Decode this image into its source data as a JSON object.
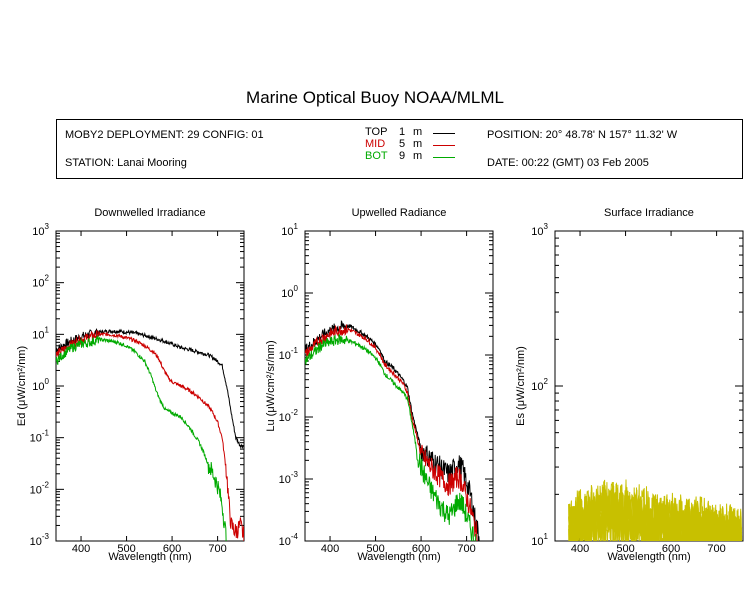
{
  "page_title": "Marine Optical Buoy NOAA/MLML",
  "info": {
    "deployment": "MOBY2 DEPLOYMENT: 29 CONFIG: 01",
    "station": "STATION: Lanai Mooring",
    "position": "POSITION: 20° 48.78' N   157° 11.32' W",
    "date": "DATE: 00:22 (GMT) 03 Feb 2005"
  },
  "legend": [
    {
      "name": "TOP",
      "depth": "1",
      "unit": "m",
      "color": "#000000"
    },
    {
      "name": "MID",
      "depth": "5",
      "unit": "m",
      "color": "#cc0000"
    },
    {
      "name": "BOT",
      "depth": "9",
      "unit": "m",
      "color": "#00aa00"
    }
  ],
  "chart_data": [
    {
      "type": "line",
      "title": "Downwelled Irradiance",
      "xlabel": "Wavelength (nm)",
      "ylabel_main": "Ed",
      "ylabel_unit": "(μW/cm²/nm)",
      "xlim": [
        345,
        758
      ],
      "ylim": [
        0.001,
        1000
      ],
      "yscale": "log",
      "x_ticks": [
        400,
        500,
        600,
        700
      ],
      "y_ticks": [
        {
          "value": 0.001,
          "base": "10",
          "exp": "-3"
        },
        {
          "value": 0.01,
          "base": "10",
          "exp": "-2"
        },
        {
          "value": 0.1,
          "base": "10",
          "exp": "-1"
        },
        {
          "value": 1,
          "base": "10",
          "exp": "0"
        },
        {
          "value": 10,
          "base": "10",
          "exp": "1"
        },
        {
          "value": 100,
          "base": "10",
          "exp": "2"
        },
        {
          "value": 1000,
          "base": "10",
          "exp": "3"
        }
      ],
      "series": [
        {
          "name": "TOP",
          "color": "#000000",
          "x": [
            345,
            360,
            380,
            400,
            420,
            440,
            460,
            480,
            500,
            520,
            540,
            560,
            580,
            600,
            620,
            640,
            660,
            680,
            690,
            700,
            710,
            720,
            730,
            740,
            750,
            758
          ],
          "y": [
            5,
            6,
            7.5,
            9,
            10,
            11,
            11.5,
            11.5,
            11,
            10.5,
            9.5,
            8.5,
            7.5,
            6.5,
            5.5,
            5,
            4.5,
            4,
            3.5,
            3,
            2.5,
            1,
            0.3,
            0.1,
            0.07,
            0.07
          ]
        },
        {
          "name": "MID",
          "color": "#cc0000",
          "x": [
            345,
            360,
            380,
            400,
            420,
            440,
            460,
            480,
            500,
            520,
            540,
            560,
            570,
            580,
            590,
            600,
            620,
            640,
            660,
            680,
            690,
            700,
            710,
            720,
            725,
            730,
            740,
            750,
            758
          ],
          "y": [
            4,
            5,
            6.5,
            8,
            9,
            10,
            10,
            9.5,
            8.5,
            7.5,
            6,
            4.5,
            3.5,
            2.2,
            1.5,
            1.2,
            1,
            0.8,
            0.6,
            0.4,
            0.3,
            0.2,
            0.1,
            0.02,
            0.005,
            0.002,
            0.0015,
            0.002,
            0.0012
          ]
        },
        {
          "name": "BOT",
          "color": "#00aa00",
          "x": [
            345,
            360,
            380,
            400,
            420,
            440,
            460,
            480,
            500,
            520,
            540,
            555,
            565,
            575,
            585,
            600,
            620,
            640,
            660,
            670,
            680,
            690,
            700,
            710,
            720
          ],
          "y": [
            3,
            4,
            5.5,
            6.5,
            7,
            8,
            7.5,
            7,
            6,
            4.5,
            3,
            1.5,
            0.8,
            0.5,
            0.35,
            0.3,
            0.25,
            0.15,
            0.08,
            0.05,
            0.03,
            0.02,
            0.012,
            0.005,
            0.001
          ]
        }
      ]
    },
    {
      "type": "line",
      "title": "Upwelled Radiance",
      "xlabel": "Wavelength (nm)",
      "ylabel_main": "Lu",
      "ylabel_unit": "(μW/cm²/sr/nm)",
      "xlim": [
        345,
        758
      ],
      "ylim": [
        0.0001,
        10
      ],
      "yscale": "log",
      "x_ticks": [
        400,
        500,
        600,
        700
      ],
      "y_ticks": [
        {
          "value": 0.0001,
          "base": "10",
          "exp": "-4"
        },
        {
          "value": 0.001,
          "base": "10",
          "exp": "-3"
        },
        {
          "value": 0.01,
          "base": "10",
          "exp": "-2"
        },
        {
          "value": 0.1,
          "base": "10",
          "exp": "-1"
        },
        {
          "value": 1,
          "base": "10",
          "exp": "0"
        },
        {
          "value": 10,
          "base": "10",
          "exp": "1"
        }
      ],
      "series": [
        {
          "name": "TOP",
          "color": "#000000",
          "x": [
            345,
            360,
            380,
            400,
            420,
            440,
            460,
            480,
            500,
            510,
            520,
            540,
            560,
            570,
            580,
            590,
            600,
            620,
            640,
            660,
            670,
            680,
            690,
            700,
            710,
            720,
            730
          ],
          "y": [
            0.12,
            0.15,
            0.2,
            0.25,
            0.28,
            0.3,
            0.25,
            0.2,
            0.15,
            0.12,
            0.08,
            0.06,
            0.04,
            0.03,
            0.012,
            0.006,
            0.003,
            0.0022,
            0.0016,
            0.0012,
            0.0014,
            0.0018,
            0.0015,
            0.0009,
            0.0005,
            0.0002,
            0.0001
          ]
        },
        {
          "name": "MID",
          "color": "#cc0000",
          "x": [
            345,
            360,
            380,
            400,
            420,
            440,
            460,
            480,
            500,
            510,
            520,
            540,
            560,
            570,
            580,
            590,
            600,
            620,
            640,
            660,
            670,
            680,
            690,
            700,
            710,
            720,
            725
          ],
          "y": [
            0.1,
            0.13,
            0.18,
            0.22,
            0.25,
            0.26,
            0.22,
            0.18,
            0.13,
            0.1,
            0.07,
            0.05,
            0.035,
            0.025,
            0.01,
            0.005,
            0.0025,
            0.0016,
            0.0011,
            0.0008,
            0.0009,
            0.0011,
            0.0009,
            0.0005,
            0.0003,
            0.00015,
            0.0001
          ]
        },
        {
          "name": "BOT",
          "color": "#00aa00",
          "x": [
            345,
            360,
            380,
            400,
            420,
            440,
            460,
            480,
            500,
            510,
            520,
            540,
            560,
            570,
            580,
            590,
            600,
            620,
            640,
            660,
            670,
            680,
            690,
            700,
            710,
            720
          ],
          "y": [
            0.08,
            0.1,
            0.14,
            0.16,
            0.18,
            0.17,
            0.15,
            0.12,
            0.09,
            0.07,
            0.05,
            0.035,
            0.025,
            0.02,
            0.008,
            0.003,
            0.0015,
            0.0007,
            0.0004,
            0.00025,
            0.0003,
            0.00045,
            0.0004,
            0.00025,
            0.00015,
            0.0001
          ]
        }
      ]
    },
    {
      "type": "line",
      "title": "Surface Irradiance",
      "xlabel": "Wavelength (nm)",
      "ylabel_main": "Es",
      "ylabel_unit": "(μW/cm²/nm)",
      "xlim": [
        345,
        758
      ],
      "ylim": [
        10,
        1000
      ],
      "yscale": "log",
      "x_ticks": [
        400,
        500,
        600,
        700
      ],
      "y_ticks": [
        {
          "value": 10,
          "base": "10",
          "exp": "1"
        },
        {
          "value": 100,
          "base": "10",
          "exp": "2"
        },
        {
          "value": 1000,
          "base": "10",
          "exp": "3"
        }
      ],
      "series": [
        {
          "color": "#c8c000",
          "x": [
            375,
            400,
            420,
            440,
            460,
            480,
            500,
            520,
            540,
            560,
            580,
            600,
            620,
            640,
            660,
            680,
            700,
            720,
            740,
            755
          ],
          "y": [
            13,
            14.5,
            15.5,
            16.5,
            17.5,
            17,
            16.5,
            16,
            15.5,
            15,
            14.5,
            14,
            13.5,
            13.2,
            13,
            12.8,
            12.3,
            11.8,
            11.5,
            11.2
          ]
        },
        {
          "color": "#c8c000",
          "x": [
            375,
            400,
            420,
            440,
            460,
            480,
            500,
            520,
            540,
            560,
            580,
            600,
            620,
            640,
            660,
            680,
            700,
            720,
            740,
            755
          ],
          "y": [
            12.5,
            13.8,
            14.8,
            15.8,
            16.5,
            16,
            15.5,
            15,
            14.6,
            14.2,
            13.8,
            13.3,
            12.9,
            12.6,
            12.4,
            12.2,
            11.8,
            11.4,
            11.1,
            10.9
          ]
        },
        {
          "color": "#c8c000",
          "x": [
            375,
            400,
            420,
            440,
            460,
            480,
            500,
            520,
            540,
            560,
            580,
            600,
            620,
            640,
            660,
            680,
            700,
            720,
            740,
            755
          ],
          "y": [
            12,
            13.2,
            14.2,
            15,
            15.6,
            15.2,
            14.8,
            14.4,
            14,
            13.6,
            13.2,
            12.8,
            12.4,
            12.1,
            11.9,
            11.7,
            11.4,
            11.1,
            10.8,
            10.6
          ]
        },
        {
          "color": "#c8c000",
          "x": [
            375,
            400,
            420,
            440,
            460,
            480,
            500,
            520,
            540,
            560,
            580,
            600,
            620,
            640,
            660,
            680,
            700,
            720,
            740,
            755
          ],
          "y": [
            11.5,
            12.6,
            13.5,
            14.3,
            14.8,
            14.5,
            14.1,
            13.7,
            13.3,
            13,
            12.6,
            12.2,
            11.9,
            11.6,
            11.4,
            11.2,
            10.9,
            10.7,
            10.5,
            10.3
          ]
        },
        {
          "color": "#c8c000",
          "x": [
            375,
            400,
            420,
            440,
            460,
            480,
            500,
            520,
            540,
            560,
            580,
            600,
            620,
            640,
            660,
            680,
            700,
            720,
            740,
            755
          ],
          "y": [
            11,
            12,
            12.8,
            13.5,
            14,
            13.8,
            13.4,
            13,
            12.7,
            12.4,
            12,
            11.7,
            11.4,
            11.2,
            11,
            10.8,
            10.6,
            10.4,
            10.2,
            10.1
          ]
        },
        {
          "color": "#c8c000",
          "x": [
            375,
            400,
            420,
            440,
            460,
            480,
            500,
            520,
            540,
            560,
            580,
            600,
            620,
            640,
            660,
            680,
            700,
            720,
            740,
            755
          ],
          "y": [
            10.6,
            11.4,
            12.1,
            12.7,
            13.2,
            13,
            12.7,
            12.4,
            12.1,
            11.8,
            11.5,
            11.2,
            11,
            10.8,
            10.6,
            10.5,
            10.3,
            10.2,
            10.1,
            10
          ]
        }
      ]
    }
  ]
}
